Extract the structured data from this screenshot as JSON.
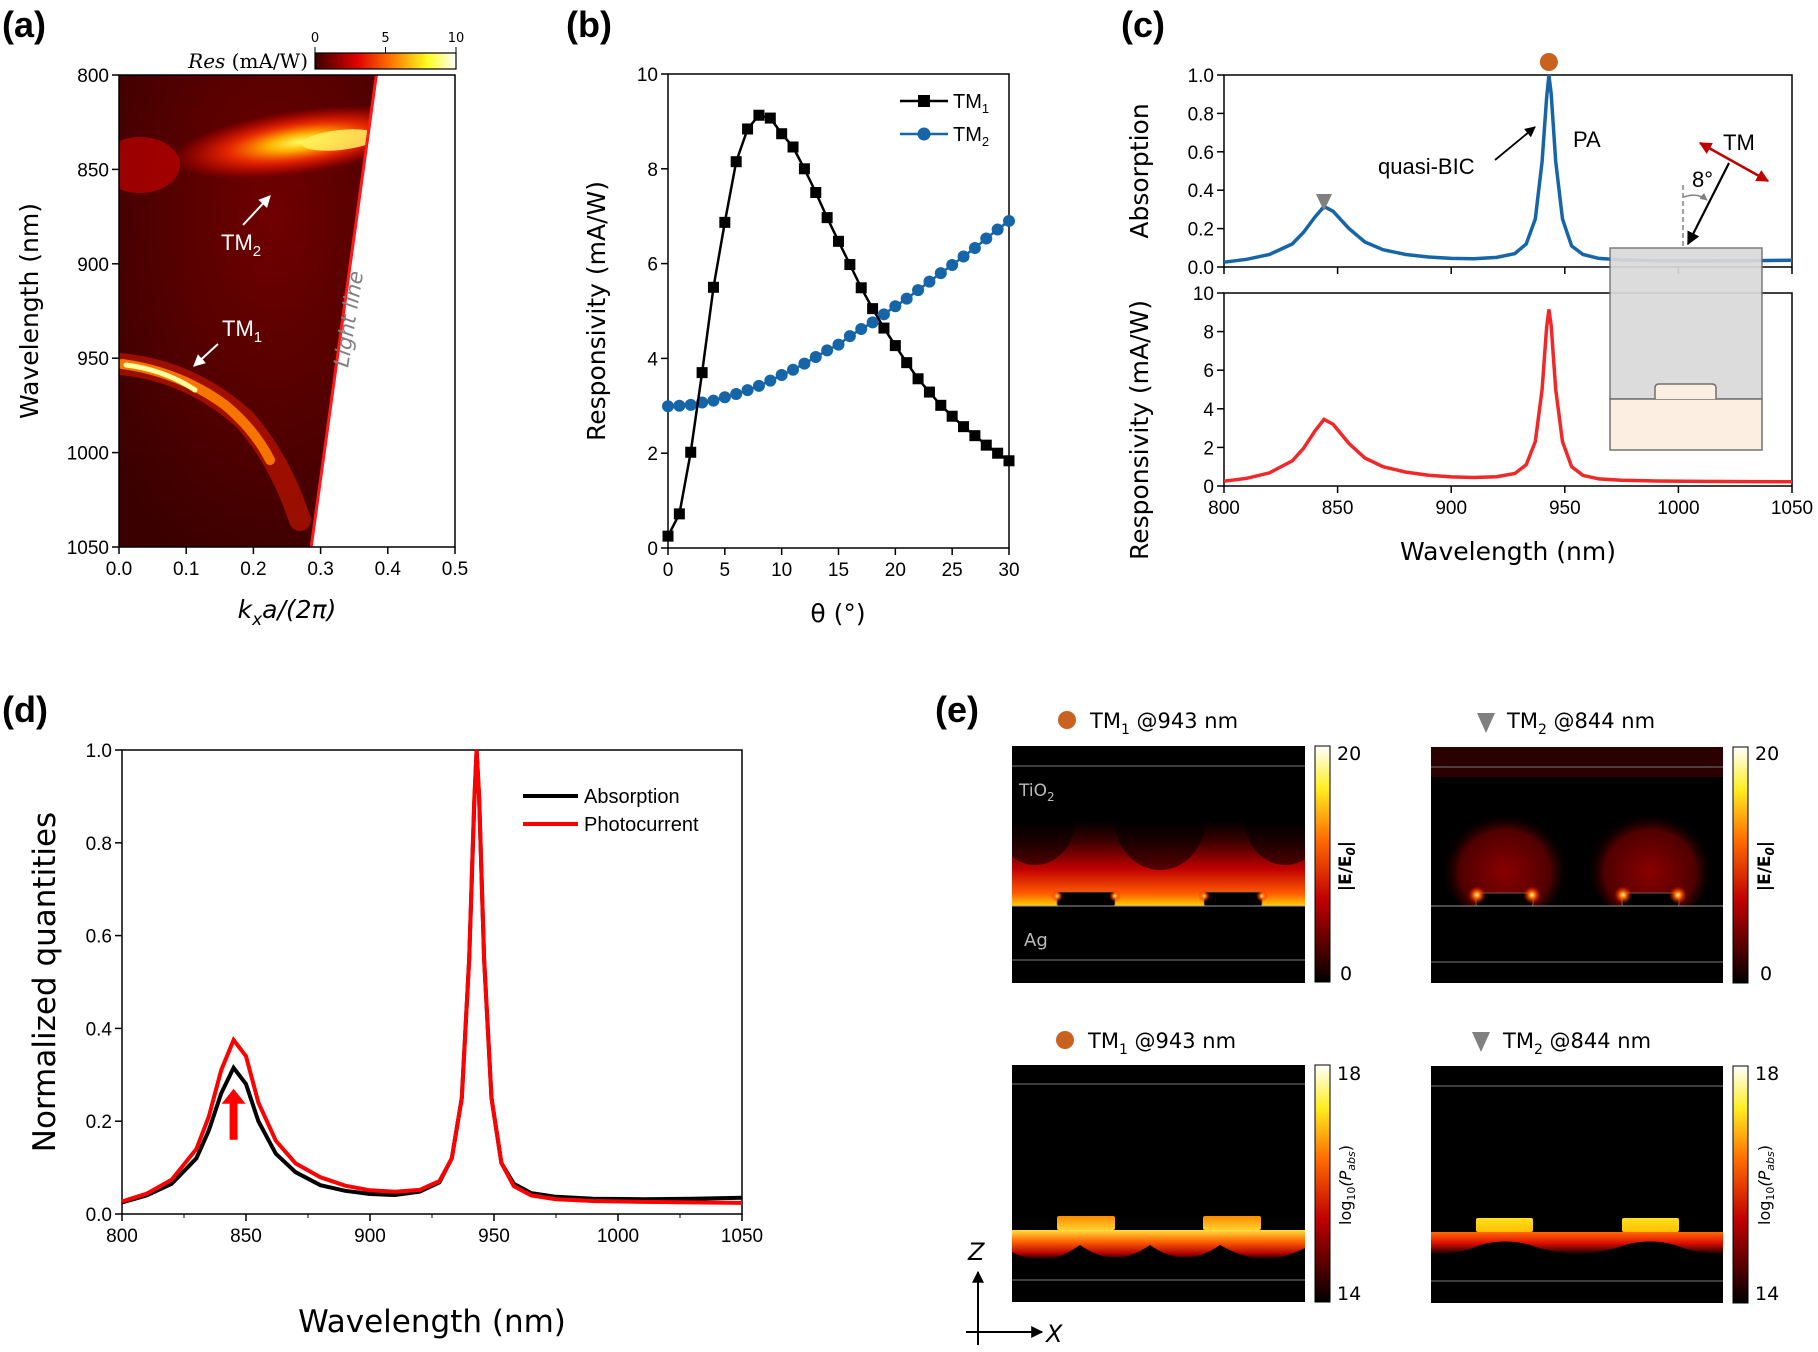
{
  "figure": {
    "panel_labels": [
      "(a)",
      "(b)",
      "(c)",
      "(d)",
      "(e)"
    ]
  },
  "chart_data": [
    {
      "id": "a",
      "type": "heatmap",
      "title": "",
      "xlabel": "k_x a/(2π)",
      "xlabel_parts": {
        "k": "k",
        "sub": "x",
        "rest": "a/(2π)"
      },
      "ylabel": "Wavelength (nm)",
      "xlim": [
        0.0,
        0.5
      ],
      "ylim": [
        800,
        1050
      ],
      "y_inverted": true,
      "xticks": [
        "0.0",
        "0.1",
        "0.2",
        "0.3",
        "0.4",
        "0.5"
      ],
      "yticks": [
        "800",
        "850",
        "900",
        "950",
        "1000",
        "1050"
      ],
      "colorbar": {
        "label": "Res (mA/W)",
        "label_italic": "Res",
        "label_rest": " (mA/W)",
        "ticks": [
          "0",
          "5",
          "10"
        ],
        "range": [
          0,
          10
        ],
        "colormap": "hot"
      },
      "light_line": {
        "label": "Light line",
        "points": [
          [
            0.383,
            800
          ],
          [
            0.286,
            1050
          ]
        ],
        "color": "#ff1a1a"
      },
      "bands": [
        {
          "name": "TM1",
          "label": "TM",
          "sub": "1",
          "points_kx_wl": [
            [
              0.0,
              940
            ],
            [
              0.05,
              944
            ],
            [
              0.1,
              952
            ],
            [
              0.15,
              965
            ],
            [
              0.2,
              983
            ],
            [
              0.25,
              1005
            ],
            [
              0.28,
              1022
            ]
          ],
          "peak_kx": 0.07
        },
        {
          "name": "TM2",
          "label": "TM",
          "sub": "2",
          "points_kx_wl": [
            [
              0.0,
              845
            ],
            [
              0.05,
              843
            ],
            [
              0.1,
              840
            ],
            [
              0.15,
              836
            ],
            [
              0.2,
              832
            ],
            [
              0.25,
              829
            ],
            [
              0.3,
              827
            ],
            [
              0.36,
              828
            ]
          ],
          "peak_kx": 0.33
        }
      ]
    },
    {
      "id": "b",
      "type": "line",
      "xlabel": "θ (°)",
      "ylabel": "Responsivity (mA/W)",
      "xlim": [
        0,
        30
      ],
      "ylim": [
        0,
        10
      ],
      "xticks": [
        "0",
        "5",
        "10",
        "15",
        "20",
        "25",
        "30"
      ],
      "yticks": [
        "0",
        "2",
        "4",
        "6",
        "8",
        "10"
      ],
      "legend_position": "top-right",
      "x": [
        0,
        1,
        2,
        3,
        4,
        5,
        6,
        7,
        8,
        9,
        10,
        11,
        12,
        13,
        14,
        15,
        16,
        17,
        18,
        19,
        20,
        21,
        22,
        23,
        24,
        25,
        26,
        27,
        28,
        29,
        30
      ],
      "series": [
        {
          "name": "TM1",
          "label": "TM",
          "sub": "1",
          "marker": "square",
          "color": "#000000",
          "values": [
            0.25,
            0.72,
            2.02,
            3.7,
            5.5,
            6.87,
            8.15,
            8.84,
            9.13,
            9.07,
            8.74,
            8.46,
            8.0,
            7.5,
            6.97,
            6.47,
            5.98,
            5.49,
            5.05,
            4.64,
            4.27,
            3.91,
            3.57,
            3.29,
            3.01,
            2.78,
            2.56,
            2.37,
            2.17,
            2.0,
            1.84
          ]
        },
        {
          "name": "TM2",
          "label": "TM",
          "sub": "2",
          "marker": "circle",
          "color": "#1565a8",
          "values": [
            2.99,
            3.0,
            3.02,
            3.07,
            3.11,
            3.18,
            3.25,
            3.33,
            3.42,
            3.53,
            3.65,
            3.76,
            3.89,
            4.03,
            4.17,
            4.29,
            4.47,
            4.62,
            4.76,
            4.93,
            5.1,
            5.26,
            5.44,
            5.62,
            5.8,
            5.97,
            6.15,
            6.33,
            6.53,
            6.72,
            6.9
          ]
        }
      ]
    },
    {
      "id": "c-top",
      "type": "line",
      "xlabel": "",
      "ylabel": "Absorption",
      "xlim": [
        800,
        1050
      ],
      "ylim": [
        0,
        1.0
      ],
      "yticks": [
        "0.0",
        "0.2",
        "0.4",
        "0.6",
        "0.8",
        "1.0"
      ],
      "series": [
        {
          "name": "Absorption",
          "color": "#1565a8",
          "x": [
            800,
            810,
            820,
            830,
            835,
            840,
            844,
            848,
            855,
            862,
            870,
            880,
            890,
            900,
            910,
            920,
            928,
            933,
            937,
            940,
            942,
            943,
            944,
            946,
            949,
            953,
            958,
            965,
            975,
            990,
            1010,
            1030,
            1050
          ],
          "values": [
            0.025,
            0.04,
            0.065,
            0.12,
            0.18,
            0.26,
            0.315,
            0.29,
            0.2,
            0.13,
            0.09,
            0.065,
            0.052,
            0.045,
            0.043,
            0.05,
            0.07,
            0.12,
            0.25,
            0.55,
            0.88,
            1.0,
            0.9,
            0.55,
            0.25,
            0.11,
            0.065,
            0.045,
            0.037,
            0.033,
            0.032,
            0.033,
            0.035
          ]
        }
      ],
      "annotations": [
        {
          "text": "quasi-BIC",
          "target_x": 943,
          "target_y": 0.98
        },
        {
          "text": "PA"
        },
        {
          "text": "TM"
        },
        {
          "text": "8°"
        }
      ],
      "markers": [
        {
          "name": "circle-marker",
          "x": 943,
          "color": "#c8621e"
        },
        {
          "name": "triangle-marker",
          "x": 844,
          "color": "#808080"
        }
      ]
    },
    {
      "id": "c-bottom",
      "type": "line",
      "xlabel": "Wavelength (nm)",
      "ylabel": "Responsivity (mA/W)",
      "xlim": [
        800,
        1050
      ],
      "ylim": [
        0,
        10
      ],
      "xticks": [
        "800",
        "850",
        "900",
        "950",
        "1000",
        "1050"
      ],
      "yticks": [
        "0",
        "2",
        "4",
        "6",
        "8",
        "10"
      ],
      "series": [
        {
          "name": "Responsivity",
          "color": "#f02828",
          "x": [
            800,
            810,
            820,
            830,
            835,
            840,
            844,
            848,
            855,
            862,
            870,
            880,
            890,
            900,
            910,
            920,
            928,
            933,
            937,
            940,
            942,
            943,
            944,
            946,
            949,
            953,
            958,
            965,
            975,
            990,
            1010,
            1030,
            1050
          ],
          "values": [
            0.25,
            0.4,
            0.68,
            1.3,
            1.95,
            2.85,
            3.45,
            3.2,
            2.2,
            1.45,
            1.0,
            0.72,
            0.56,
            0.47,
            0.44,
            0.48,
            0.65,
            1.1,
            2.3,
            5.0,
            8.2,
            9.15,
            8.3,
            5.0,
            2.3,
            1.0,
            0.55,
            0.37,
            0.3,
            0.26,
            0.24,
            0.23,
            0.22
          ]
        }
      ]
    },
    {
      "id": "d",
      "type": "line",
      "xlabel": "Wavelength (nm)",
      "ylabel": "Normalized quantities",
      "xlim": [
        800,
        1050
      ],
      "ylim": [
        0,
        1.0
      ],
      "xticks": [
        "800",
        "850",
        "900",
        "950",
        "1000",
        "1050"
      ],
      "yticks": [
        "0.0",
        "0.2",
        "0.4",
        "0.6",
        "0.8",
        "1.0"
      ],
      "legend_position": "top-right",
      "series": [
        {
          "name": "Absorption",
          "color": "#000000",
          "x": [
            800,
            810,
            820,
            830,
            835,
            840,
            845,
            850,
            855,
            862,
            870,
            880,
            890,
            900,
            910,
            920,
            928,
            933,
            937,
            940,
            942,
            943,
            944,
            946,
            949,
            953,
            958,
            965,
            975,
            990,
            1010,
            1030,
            1050
          ],
          "values": [
            0.025,
            0.04,
            0.065,
            0.12,
            0.18,
            0.26,
            0.315,
            0.28,
            0.2,
            0.13,
            0.09,
            0.062,
            0.05,
            0.043,
            0.041,
            0.048,
            0.068,
            0.12,
            0.25,
            0.55,
            0.88,
            1.0,
            0.9,
            0.55,
            0.25,
            0.11,
            0.065,
            0.045,
            0.037,
            0.033,
            0.032,
            0.033,
            0.035
          ]
        },
        {
          "name": "Photocurrent",
          "color": "#ff0000",
          "x": [
            800,
            810,
            820,
            830,
            835,
            840,
            845,
            850,
            855,
            862,
            870,
            880,
            890,
            900,
            910,
            920,
            928,
            933,
            937,
            940,
            942,
            943,
            944,
            946,
            949,
            953,
            958,
            965,
            975,
            990,
            1010,
            1030,
            1050
          ],
          "values": [
            0.027,
            0.044,
            0.074,
            0.14,
            0.21,
            0.31,
            0.375,
            0.34,
            0.24,
            0.158,
            0.109,
            0.079,
            0.061,
            0.051,
            0.048,
            0.052,
            0.071,
            0.12,
            0.25,
            0.55,
            0.89,
            1.0,
            0.9,
            0.55,
            0.25,
            0.11,
            0.06,
            0.04,
            0.032,
            0.028,
            0.026,
            0.025,
            0.024
          ]
        }
      ],
      "annotations": [
        {
          "name": "red-up-arrow",
          "x": 845,
          "y_from": 0.16,
          "y_to": 0.27,
          "color": "#ff0000"
        }
      ]
    },
    {
      "id": "e",
      "type": "heatmap",
      "maps": [
        {
          "title": "TM1 @943 nm",
          "label": "TM",
          "sub": "1",
          "rest": " @943 nm",
          "marker": "circle",
          "marker_color": "#c8621e",
          "quantity": "|E/E0|",
          "cb_ticks": [
            "20",
            "0"
          ],
          "range": [
            0,
            20
          ],
          "materials": [
            "TiO2",
            "Ag"
          ]
        },
        {
          "title": "TM2 @844 nm",
          "label": "TM",
          "sub": "2",
          "rest": " @844 nm",
          "marker": "triangle",
          "marker_color": "#808080",
          "quantity": "|E/E0|",
          "cb_ticks": [
            "20",
            "0"
          ],
          "range": [
            0,
            20
          ]
        },
        {
          "title": "TM1 @943 nm",
          "label": "TM",
          "sub": "1",
          "rest": " @943 nm",
          "marker": "circle",
          "marker_color": "#c8621e",
          "quantity": "log10(Pabs)",
          "cb_ticks": [
            "18",
            "14"
          ],
          "range": [
            14,
            18
          ]
        },
        {
          "title": "TM2 @844 nm",
          "label": "TM",
          "sub": "2",
          "rest": " @844 nm",
          "marker": "triangle",
          "marker_color": "#808080",
          "quantity": "log10(Pabs)",
          "cb_ticks": [
            "18",
            "14"
          ],
          "range": [
            14,
            18
          ]
        }
      ],
      "axes_indicator": {
        "z": "Z",
        "x": "X"
      }
    }
  ],
  "text": {
    "a_tm1": "TM",
    "a_tm1_sub": "1",
    "a_tm2": "TM",
    "a_tm2_sub": "2",
    "light_line": "Light line",
    "quasi_bic": "quasi-BIC",
    "pa": "PA",
    "tm": "TM",
    "angle": "8°",
    "tio2": "TiO",
    "tio2_sub": "2",
    "ag": "Ag",
    "e_field_label": "|E/E",
    "e_field_sub": "0",
    "pabs_log": "log",
    "pabs_log_sub": "10",
    "pabs_p": "(P",
    "pabs_sub": "abs",
    "axis_z": "Z",
    "axis_x": "X"
  }
}
